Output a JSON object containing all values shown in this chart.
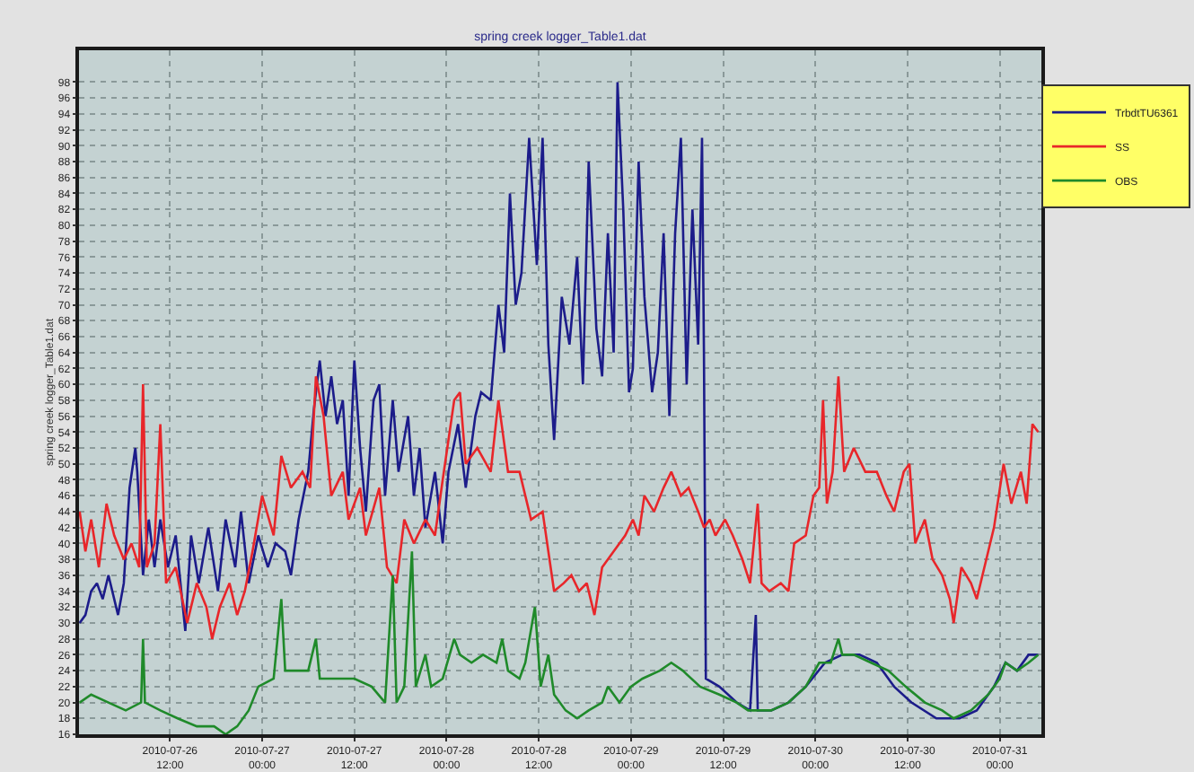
{
  "chart_data": {
    "type": "line",
    "title": "spring creek logger_Table1.dat",
    "ylabel": "spring creek logger_Table1.dat",
    "xlim": [
      "2010-07-26T00:10",
      "2010-07-31T05:25"
    ],
    "xticks": [
      {
        "value": "2010-07-26T12:00",
        "label": "2010-07-26\n12:00"
      },
      {
        "value": "2010-07-27T00:00",
        "label": "2010-07-27\n00:00"
      },
      {
        "value": "2010-07-27T12:00",
        "label": "2010-07-27\n12:00"
      },
      {
        "value": "2010-07-28T00:00",
        "label": "2010-07-28\n00:00"
      },
      {
        "value": "2010-07-28T12:00",
        "label": "2010-07-28\n12:00"
      },
      {
        "value": "2010-07-29T00:00",
        "label": "2010-07-29\n00:00"
      },
      {
        "value": "2010-07-29T12:00",
        "label": "2010-07-29\n12:00"
      },
      {
        "value": "2010-07-30T00:00",
        "label": "2010-07-30\n00:00"
      },
      {
        "value": "2010-07-30T12:00",
        "label": "2010-07-30\n12:00"
      },
      {
        "value": "2010-07-31T00:00",
        "label": "2010-07-31\n00:00"
      }
    ],
    "ylim": [
      16,
      102
    ],
    "yticks": [
      16,
      18,
      20,
      22,
      24,
      26,
      28,
      30,
      32,
      34,
      36,
      38,
      40,
      42,
      44,
      46,
      48,
      50,
      52,
      54,
      56,
      58,
      60,
      62,
      64,
      66,
      68,
      70,
      72,
      74,
      76,
      78,
      80,
      82,
      84,
      86,
      88,
      90,
      92,
      94,
      96,
      98
    ],
    "grid": true,
    "legend": "top right",
    "series": [
      {
        "name": "TrbdtTU6361",
        "color": "#1c1c8a",
        "x": [
          "2010-07-26T00:15",
          "2010-07-26T01:00",
          "2010-07-26T01:45",
          "2010-07-26T02:30",
          "2010-07-26T03:15",
          "2010-07-26T04:00",
          "2010-07-26T05:15",
          "2010-07-26T06:00",
          "2010-07-26T06:45",
          "2010-07-26T07:30",
          "2010-07-26T07:45",
          "2010-07-26T08:30",
          "2010-07-26T09:15",
          "2010-07-26T10:00",
          "2010-07-26T10:45",
          "2010-07-26T11:45",
          "2010-07-26T12:45",
          "2010-07-26T14:00",
          "2010-07-26T14:45",
          "2010-07-26T15:45",
          "2010-07-26T17:00",
          "2010-07-26T18:15",
          "2010-07-26T19:15",
          "2010-07-26T20:30",
          "2010-07-26T21:15",
          "2010-07-26T22:15",
          "2010-07-26T23:30",
          "2010-07-27T00:45",
          "2010-07-27T01:45",
          "2010-07-27T03:00",
          "2010-07-27T03:45",
          "2010-07-27T04:45",
          "2010-07-27T06:00",
          "2010-07-27T06:45",
          "2010-07-27T07:30",
          "2010-07-27T08:15",
          "2010-07-27T09:00",
          "2010-07-27T09:45",
          "2010-07-27T10:30",
          "2010-07-27T11:15",
          "2010-07-27T12:00",
          "2010-07-27T12:45",
          "2010-07-27T13:30",
          "2010-07-27T14:30",
          "2010-07-27T15:15",
          "2010-07-27T16:00",
          "2010-07-27T17:00",
          "2010-07-27T17:45",
          "2010-07-27T19:00",
          "2010-07-27T19:45",
          "2010-07-27T20:30",
          "2010-07-27T21:15",
          "2010-07-27T22:30",
          "2010-07-27T23:30",
          "2010-07-28T00:15",
          "2010-07-28T01:30",
          "2010-07-28T02:30",
          "2010-07-28T03:45",
          "2010-07-28T04:30",
          "2010-07-28T05:45",
          "2010-07-28T06:45",
          "2010-07-28T07:30",
          "2010-07-28T08:15",
          "2010-07-28T09:00",
          "2010-07-28T09:45",
          "2010-07-28T10:45",
          "2010-07-28T11:45",
          "2010-07-28T12:30",
          "2010-07-28T13:15",
          "2010-07-28T14:00",
          "2010-07-28T15:00",
          "2010-07-28T16:00",
          "2010-07-28T17:00",
          "2010-07-28T17:45",
          "2010-07-28T18:30",
          "2010-07-28T19:30",
          "2010-07-28T20:15",
          "2010-07-28T21:00",
          "2010-07-28T21:45",
          "2010-07-28T22:15",
          "2010-07-28T23:00",
          "2010-07-28T23:45",
          "2010-07-29T00:15",
          "2010-07-29T01:00",
          "2010-07-29T01:45",
          "2010-07-29T02:45",
          "2010-07-29T03:30",
          "2010-07-29T04:15",
          "2010-07-29T05:00",
          "2010-07-29T05:45",
          "2010-07-29T06:30",
          "2010-07-29T07:15",
          "2010-07-29T08:00",
          "2010-07-29T08:45",
          "2010-07-29T09:15",
          "2010-07-29T09:30",
          "2010-07-29T09:45",
          "2010-07-29T11:30",
          "2010-07-29T13:45",
          "2010-07-29T15:30",
          "2010-07-29T16:15",
          "2010-07-29T16:30",
          "2010-07-29T18:15",
          "2010-07-29T20:30",
          "2010-07-29T22:45",
          "2010-07-30T01:15",
          "2010-07-30T03:30",
          "2010-07-30T05:45",
          "2010-07-30T08:00",
          "2010-07-30T10:15",
          "2010-07-30T12:30",
          "2010-07-30T15:45",
          "2010-07-30T18:45",
          "2010-07-30T21:00",
          "2010-07-30T23:15",
          "2010-07-31T00:45",
          "2010-07-31T02:15",
          "2010-07-31T03:45",
          "2010-07-31T05:00"
        ],
        "values": [
          30,
          31,
          34,
          35,
          33,
          36,
          31,
          35,
          47,
          52,
          49,
          36,
          43,
          37,
          43,
          37,
          41,
          29,
          41,
          35,
          42,
          34,
          43,
          37,
          44,
          35,
          41,
          37,
          40,
          39,
          36,
          43,
          49,
          57,
          63,
          56,
          61,
          55,
          58,
          46,
          63,
          52,
          44,
          58,
          60,
          46,
          58,
          49,
          56,
          46,
          52,
          42,
          49,
          40,
          49,
          55,
          47,
          56,
          59,
          58,
          70,
          64,
          84,
          70,
          74,
          91,
          75,
          91,
          65,
          53,
          71,
          65,
          76,
          60,
          88,
          67,
          61,
          79,
          64,
          98,
          82,
          59,
          62,
          88,
          71,
          59,
          64,
          79,
          56,
          79,
          91,
          60,
          82,
          65,
          91,
          64,
          23,
          22,
          20,
          19,
          31,
          19,
          19,
          20,
          22,
          25,
          26,
          26,
          25,
          22,
          20,
          18,
          18,
          19,
          22,
          25,
          24,
          26,
          26
        ]
      },
      {
        "name": "SS",
        "color": "#e8262a",
        "x": [
          "2010-07-26T00:15",
          "2010-07-26T01:00",
          "2010-07-26T01:45",
          "2010-07-26T02:45",
          "2010-07-26T03:45",
          "2010-07-26T04:45",
          "2010-07-26T06:00",
          "2010-07-26T07:00",
          "2010-07-26T08:00",
          "2010-07-26T08:30",
          "2010-07-26T09:00",
          "2010-07-26T10:00",
          "2010-07-26T10:45",
          "2010-07-26T11:30",
          "2010-07-26T12:45",
          "2010-07-26T14:15",
          "2010-07-26T15:30",
          "2010-07-26T16:45",
          "2010-07-26T17:30",
          "2010-07-26T18:30",
          "2010-07-26T19:45",
          "2010-07-26T20:45",
          "2010-07-26T21:45",
          "2010-07-26T22:45",
          "2010-07-27T00:00",
          "2010-07-27T01:30",
          "2010-07-27T02:30",
          "2010-07-27T03:45",
          "2010-07-27T05:15",
          "2010-07-27T06:15",
          "2010-07-27T07:00",
          "2010-07-27T08:00",
          "2010-07-27T09:00",
          "2010-07-27T10:30",
          "2010-07-27T11:15",
          "2010-07-27T12:45",
          "2010-07-27T13:30",
          "2010-07-27T15:15",
          "2010-07-27T16:15",
          "2010-07-27T17:30",
          "2010-07-27T18:30",
          "2010-07-27T19:45",
          "2010-07-27T21:15",
          "2010-07-27T22:30",
          "2010-07-27T23:30",
          "2010-07-28T01:00",
          "2010-07-28T01:45",
          "2010-07-28T02:30",
          "2010-07-28T04:00",
          "2010-07-28T05:45",
          "2010-07-28T06:45",
          "2010-07-28T08:00",
          "2010-07-28T09:30",
          "2010-07-28T11:00",
          "2010-07-28T12:30",
          "2010-07-28T13:15",
          "2010-07-28T14:00",
          "2010-07-28T15:15",
          "2010-07-28T16:15",
          "2010-07-28T17:15",
          "2010-07-28T18:15",
          "2010-07-28T19:15",
          "2010-07-28T20:15",
          "2010-07-28T21:45",
          "2010-07-28T23:15",
          "2010-07-29T00:15",
          "2010-07-29T01:00",
          "2010-07-29T01:45",
          "2010-07-29T03:00",
          "2010-07-29T04:15",
          "2010-07-29T05:15",
          "2010-07-29T06:30",
          "2010-07-29T07:30",
          "2010-07-29T08:45",
          "2010-07-29T09:30",
          "2010-07-29T10:15",
          "2010-07-29T11:00",
          "2010-07-29T12:15",
          "2010-07-29T13:15",
          "2010-07-29T14:30",
          "2010-07-29T15:30",
          "2010-07-29T16:30",
          "2010-07-29T17:00",
          "2010-07-29T18:00",
          "2010-07-29T19:30",
          "2010-07-29T20:30",
          "2010-07-29T21:15",
          "2010-07-29T22:45",
          "2010-07-29T23:45",
          "2010-07-30T00:30",
          "2010-07-30T01:00",
          "2010-07-30T01:30",
          "2010-07-30T02:15",
          "2010-07-30T03:00",
          "2010-07-30T03:45",
          "2010-07-30T05:00",
          "2010-07-30T06:30",
          "2010-07-30T08:00",
          "2010-07-30T09:15",
          "2010-07-30T10:15",
          "2010-07-30T11:30",
          "2010-07-30T12:15",
          "2010-07-30T13:00",
          "2010-07-30T14:15",
          "2010-07-30T15:15",
          "2010-07-30T16:30",
          "2010-07-30T17:30",
          "2010-07-30T18:00",
          "2010-07-30T19:00",
          "2010-07-30T20:15",
          "2010-07-30T21:00",
          "2010-07-30T22:15",
          "2010-07-30T23:15",
          "2010-07-31T00:30",
          "2010-07-31T01:30",
          "2010-07-31T02:45",
          "2010-07-31T03:30",
          "2010-07-31T04:15",
          "2010-07-31T05:00"
        ],
        "values": [
          44,
          39,
          43,
          37,
          45,
          41,
          38,
          40,
          37,
          60,
          37,
          40,
          55,
          35,
          37,
          30,
          35,
          32,
          28,
          32,
          35,
          31,
          34,
          39,
          46,
          41,
          51,
          47,
          49,
          47,
          61,
          56,
          46,
          49,
          43,
          47,
          41,
          47,
          37,
          35,
          43,
          40,
          43,
          41,
          48,
          58,
          59,
          50,
          52,
          49,
          58,
          49,
          49,
          43,
          44,
          39,
          34,
          35,
          36,
          34,
          35,
          31,
          37,
          39,
          41,
          43,
          41,
          46,
          44,
          47,
          49,
          46,
          47,
          44,
          42,
          43,
          41,
          43,
          41,
          38,
          35,
          45,
          35,
          34,
          35,
          34,
          40,
          41,
          46,
          47,
          58,
          45,
          49,
          61,
          49,
          52,
          49,
          49,
          46,
          44,
          49,
          50,
          40,
          43,
          38,
          36,
          33,
          30,
          37,
          35,
          33,
          38,
          42,
          50,
          45,
          49,
          45,
          55,
          54
        ]
      },
      {
        "name": "OBS",
        "color": "#1f8a2a",
        "x": [
          "2010-07-26T00:15",
          "2010-07-26T01:45",
          "2010-07-26T04:00",
          "2010-07-26T06:15",
          "2010-07-26T08:15",
          "2010-07-26T08:30",
          "2010-07-26T08:45",
          "2010-07-26T10:45",
          "2010-07-26T13:00",
          "2010-07-26T15:30",
          "2010-07-26T17:45",
          "2010-07-26T19:15",
          "2010-07-26T20:45",
          "2010-07-26T22:15",
          "2010-07-26T23:30",
          "2010-07-27T01:30",
          "2010-07-27T02:30",
          "2010-07-27T03:00",
          "2010-07-27T04:30",
          "2010-07-27T06:00",
          "2010-07-27T07:00",
          "2010-07-27T07:30",
          "2010-07-27T09:45",
          "2010-07-27T12:00",
          "2010-07-27T14:15",
          "2010-07-27T16:00",
          "2010-07-27T17:00",
          "2010-07-27T17:30",
          "2010-07-27T18:30",
          "2010-07-27T19:30",
          "2010-07-27T20:00",
          "2010-07-27T21:15",
          "2010-07-27T22:00",
          "2010-07-27T23:30",
          "2010-07-28T01:00",
          "2010-07-28T01:45",
          "2010-07-28T03:15",
          "2010-07-28T04:45",
          "2010-07-28T06:30",
          "2010-07-28T07:15",
          "2010-07-28T08:00",
          "2010-07-28T09:30",
          "2010-07-28T10:15",
          "2010-07-28T11:30",
          "2010-07-28T12:15",
          "2010-07-28T13:15",
          "2010-07-28T14:00",
          "2010-07-28T15:30",
          "2010-07-28T17:00",
          "2010-07-28T18:30",
          "2010-07-28T20:15",
          "2010-07-28T21:00",
          "2010-07-28T22:30",
          "2010-07-29T00:00",
          "2010-07-29T01:30",
          "2010-07-29T03:45",
          "2010-07-29T05:15",
          "2010-07-29T06:45",
          "2010-07-29T09:00",
          "2010-07-29T11:30",
          "2010-07-29T13:45",
          "2010-07-29T15:15",
          "2010-07-29T16:45",
          "2010-07-29T18:15",
          "2010-07-29T20:30",
          "2010-07-29T22:45",
          "2010-07-30T00:30",
          "2010-07-30T02:00",
          "2010-07-30T03:00",
          "2010-07-30T03:30",
          "2010-07-30T05:00",
          "2010-07-30T07:15",
          "2010-07-30T09:30",
          "2010-07-30T11:45",
          "2010-07-30T14:15",
          "2010-07-30T16:30",
          "2010-07-30T18:00",
          "2010-07-30T20:15",
          "2010-07-30T22:30",
          "2010-07-31T00:00",
          "2010-07-31T00:45",
          "2010-07-31T02:15",
          "2010-07-31T03:45",
          "2010-07-31T05:00"
        ],
        "values": [
          20,
          21,
          20,
          19,
          20,
          28,
          20,
          19,
          18,
          17,
          17,
          16,
          17,
          19,
          22,
          23,
          33,
          24,
          24,
          24,
          28,
          23,
          23,
          23,
          22,
          20,
          36,
          20,
          22,
          39,
          22,
          26,
          22,
          23,
          28,
          26,
          25,
          26,
          25,
          28,
          24,
          23,
          25,
          32,
          22,
          26,
          21,
          19,
          18,
          19,
          20,
          22,
          20,
          22,
          23,
          24,
          25,
          24,
          22,
          21,
          20,
          19,
          19,
          19,
          20,
          22,
          25,
          25,
          28,
          26,
          26,
          25,
          24,
          22,
          20,
          19,
          18,
          19,
          21,
          23,
          25,
          24,
          25,
          26
        ]
      }
    ]
  }
}
